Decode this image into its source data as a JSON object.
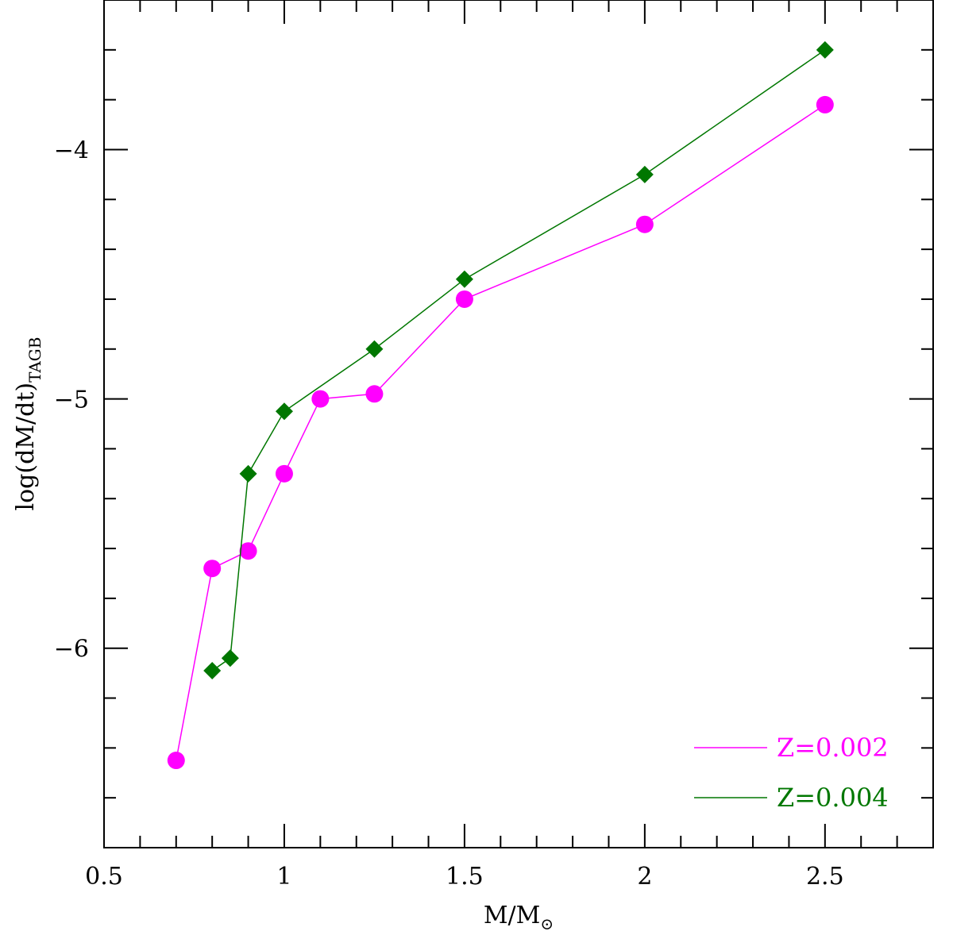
{
  "chart_data": {
    "type": "line",
    "xlabel": "M/M",
    "xlabel_sub": "⊙",
    "ylabel": "log(dM/dt)",
    "ylabel_sub": "TAGB",
    "xlim": [
      0.5,
      2.8
    ],
    "ylim": [
      -6.8,
      -3.4
    ],
    "xticks_major": [
      0.5,
      1,
      1.5,
      2,
      2.5
    ],
    "xtick_labels": [
      "0.5",
      "1",
      "1.5",
      "2",
      "2.5"
    ],
    "yticks_major": [
      -6,
      -5,
      -4
    ],
    "ytick_labels": [
      "−6",
      "−5",
      "−4"
    ],
    "legend_position": "bottom-right",
    "series": [
      {
        "name": "Z=0.002",
        "color": "#ff00ff",
        "marker": "circle",
        "x": [
          0.7,
          0.8,
          0.9,
          1.0,
          1.1,
          1.25,
          1.5,
          2.0,
          2.5
        ],
        "y": [
          -6.45,
          -5.68,
          -5.61,
          -5.3,
          -5.0,
          -4.98,
          -4.6,
          -4.3,
          -3.82
        ]
      },
      {
        "name": "Z=0.004",
        "color": "#007700",
        "marker": "diamond",
        "x": [
          0.8,
          0.85,
          0.9,
          1.0,
          1.25,
          1.5,
          2.0,
          2.5
        ],
        "y": [
          -6.09,
          -6.04,
          -5.3,
          -5.05,
          -4.8,
          -4.52,
          -4.1,
          -3.6
        ]
      }
    ]
  }
}
